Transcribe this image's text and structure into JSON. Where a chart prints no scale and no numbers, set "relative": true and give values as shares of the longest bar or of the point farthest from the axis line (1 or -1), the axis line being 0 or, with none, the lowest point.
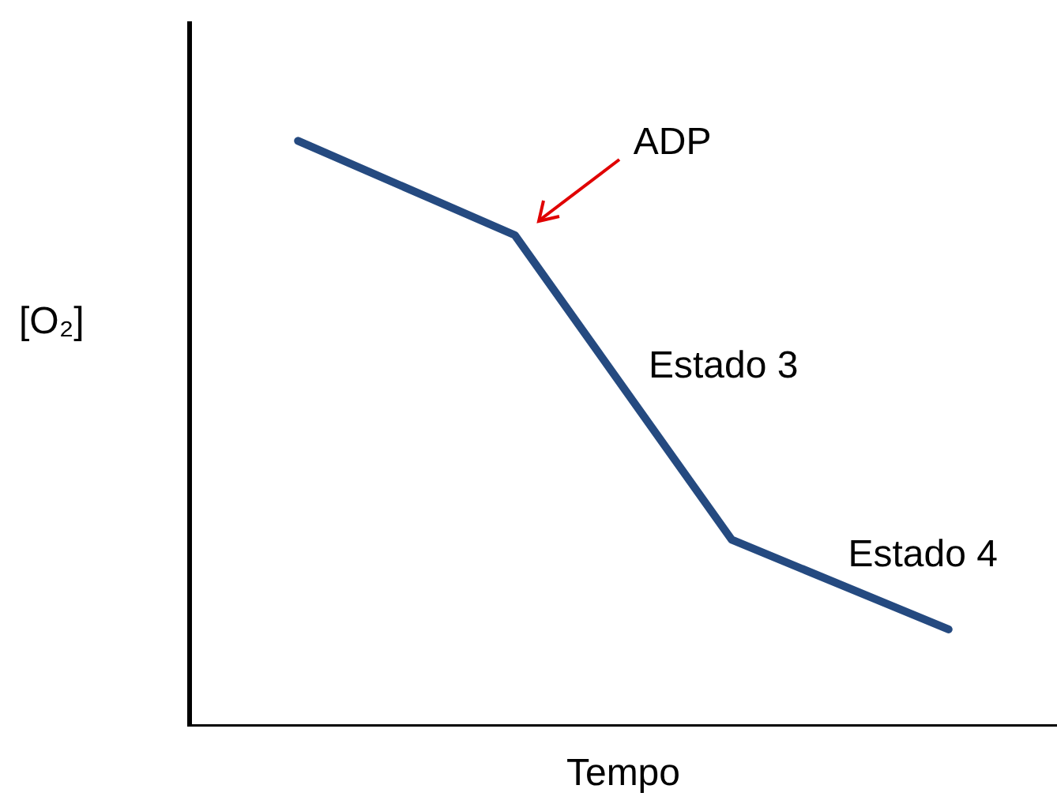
{
  "chart_data": {
    "type": "line",
    "relative": true,
    "xlabel": "Tempo",
    "ylabel": "[O₂]",
    "categories": [
      null,
      null,
      null,
      null
    ],
    "series": [
      {
        "color": "#254a80",
        "values": [
          1,
          0.839,
          0.319,
          0.166
        ]
      }
    ],
    "annotations": [
      "ADP",
      "Estado 3",
      "Estado 4"
    ],
    "legend": false,
    "grid": false,
    "marker": "none"
  }
}
